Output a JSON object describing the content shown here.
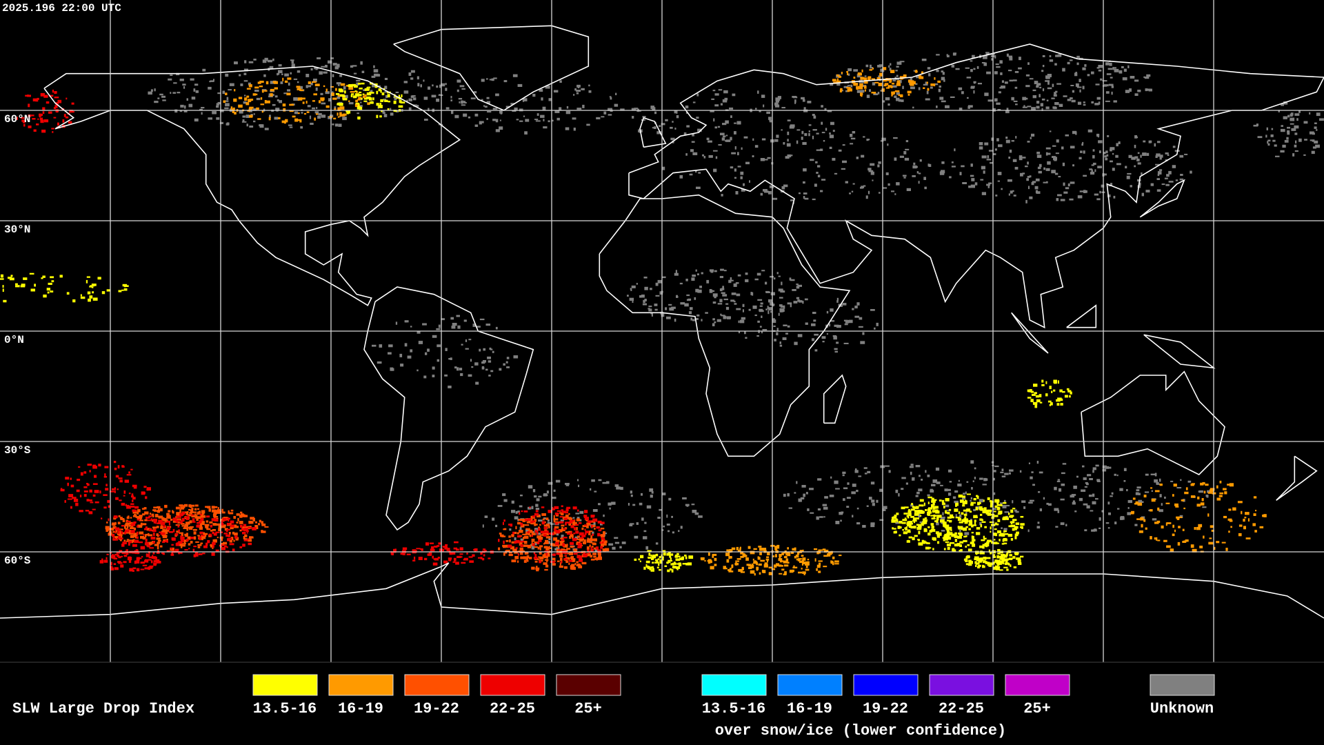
{
  "header": {
    "timestamp": "2025.196 22:00 UTC"
  },
  "map": {
    "latitude_labels": [
      "60°N",
      "30°N",
      "0°N",
      "30°S",
      "60°S"
    ]
  },
  "legend": {
    "title": "SLW Large Drop Index",
    "items": [
      {
        "label": "13.5-16",
        "color": "#ffff00"
      },
      {
        "label": "16-19",
        "color": "#ff9a00"
      },
      {
        "label": "19-22",
        "color": "#ff5000"
      },
      {
        "label": "22-25",
        "color": "#ee0000"
      },
      {
        "label": "25+",
        "color": "#5a0000"
      }
    ],
    "snow_ice_items": [
      {
        "label": "13.5-16",
        "color": "#00ffff"
      },
      {
        "label": "16-19",
        "color": "#0080ff"
      },
      {
        "label": "19-22",
        "color": "#0000ff"
      },
      {
        "label": "22-25",
        "color": "#7a10e0"
      },
      {
        "label": "25+",
        "color": "#c000c8"
      }
    ],
    "snow_ice_caption": "over snow/ice (lower confidence)",
    "unknown": {
      "label": "Unknown",
      "color": "#808080"
    }
  }
}
